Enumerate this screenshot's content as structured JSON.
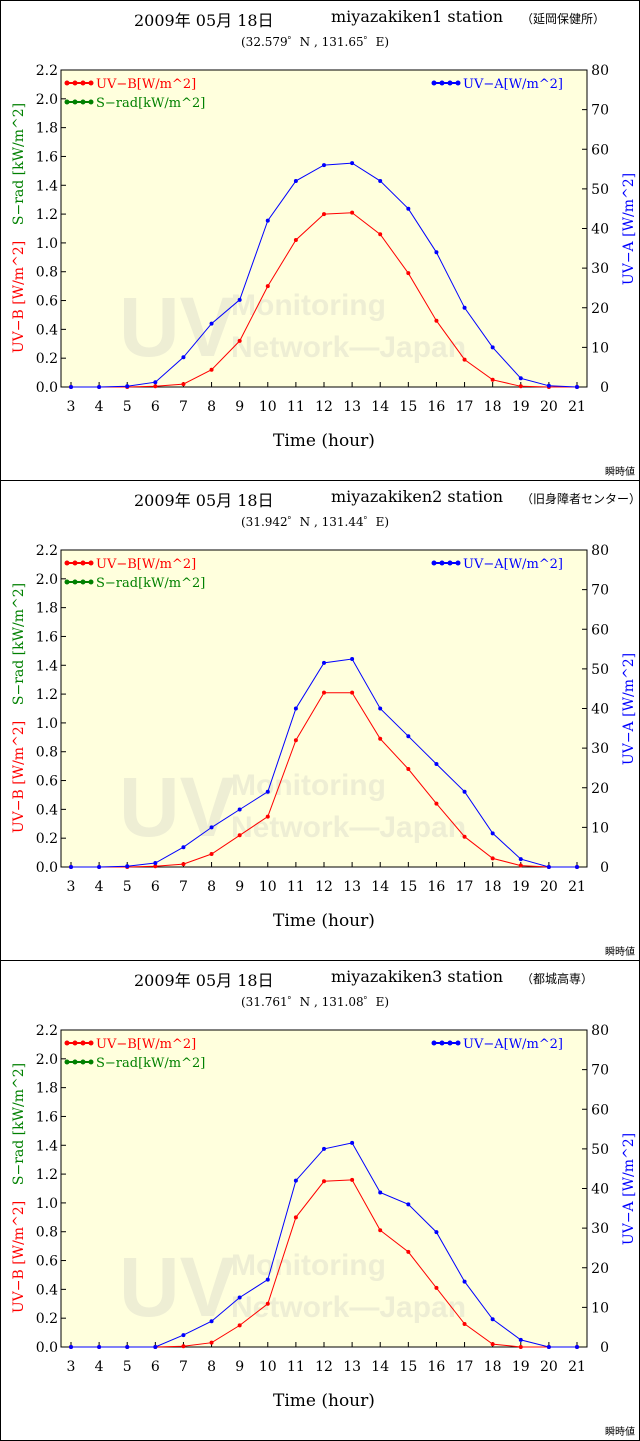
{
  "chart_data": [
    {
      "type": "line",
      "title_date": "2009年 05月 18日",
      "station": "miyazakiken1 station",
      "station_jp": "（延岡保健所）",
      "coords": "(32.579゜N , 131.65゜E)",
      "xlabel": "Time (hour)",
      "ylabel_left_uvb": "UV−B [W/m^2]",
      "ylabel_left_srad": "S−rad [kW/m^2]",
      "ylabel_right": "UV−A [W/m^2]",
      "footnote": "瞬時値",
      "x": [
        3,
        4,
        5,
        6,
        7,
        8,
        9,
        10,
        11,
        12,
        13,
        14,
        15,
        16,
        17,
        18,
        19,
        20,
        21
      ],
      "xlim": [
        3,
        21
      ],
      "ylim_left": [
        0,
        2.2
      ],
      "ylim_right": [
        0,
        80
      ],
      "left_ticks": [
        "0.0",
        "0.2",
        "0.4",
        "0.6",
        "0.8",
        "1.0",
        "1.2",
        "1.4",
        "1.6",
        "1.8",
        "2.0",
        "2.2"
      ],
      "right_ticks": [
        "0",
        "10",
        "20",
        "30",
        "40",
        "50",
        "60",
        "70",
        "80"
      ],
      "legend": [
        {
          "name": "UV−B[W/m^2]",
          "color": "#ff0000",
          "position": "top-left"
        },
        {
          "name": "S−rad[kW/m^2]",
          "color": "#008000",
          "position": "top-left"
        },
        {
          "name": "UV−A[W/m^2]",
          "color": "#0000ff",
          "position": "top-right"
        }
      ],
      "series": [
        {
          "name": "UV−B[W/m^2]",
          "axis": "left",
          "color": "#ff0000",
          "values": [
            0,
            0,
            0,
            0.005,
            0.02,
            0.12,
            0.32,
            0.7,
            1.02,
            1.2,
            1.21,
            1.06,
            0.79,
            0.46,
            0.19,
            0.05,
            0.005,
            0,
            0
          ]
        },
        {
          "name": "UV−A[W/m^2]",
          "axis": "right",
          "color": "#0000ff",
          "values": [
            0,
            0,
            0.2,
            1.2,
            7.5,
            16,
            22,
            42,
            52,
            56,
            56.5,
            52,
            45,
            34,
            20,
            10,
            2.2,
            0.3,
            0
          ]
        }
      ]
    },
    {
      "type": "line",
      "title_date": "2009年 05月 18日",
      "station": "miyazakiken2 station",
      "station_jp": "（旧身障者センター）",
      "coords": "(31.942゜N , 131.44゜E)",
      "xlabel": "Time (hour)",
      "ylabel_left_uvb": "UV−B [W/m^2]",
      "ylabel_left_srad": "S−rad [kW/m^2]",
      "ylabel_right": "UV−A [W/m^2]",
      "footnote": "瞬時値",
      "x": [
        3,
        4,
        5,
        6,
        7,
        8,
        9,
        10,
        11,
        12,
        13,
        14,
        15,
        16,
        17,
        18,
        19,
        20,
        21
      ],
      "xlim": [
        3,
        21
      ],
      "ylim_left": [
        0,
        2.2
      ],
      "ylim_right": [
        0,
        80
      ],
      "left_ticks": [
        "0.0",
        "0.2",
        "0.4",
        "0.6",
        "0.8",
        "1.0",
        "1.2",
        "1.4",
        "1.6",
        "1.8",
        "2.0",
        "2.2"
      ],
      "right_ticks": [
        "0",
        "10",
        "20",
        "30",
        "40",
        "50",
        "60",
        "70",
        "80"
      ],
      "legend": [
        {
          "name": "UV−B[W/m^2]",
          "color": "#ff0000",
          "position": "top-left"
        },
        {
          "name": "S−rad[kW/m^2]",
          "color": "#008000",
          "position": "top-left"
        },
        {
          "name": "UV−A[W/m^2]",
          "color": "#0000ff",
          "position": "top-right"
        }
      ],
      "series": [
        {
          "name": "UV−B[W/m^2]",
          "axis": "left",
          "color": "#ff0000",
          "values": [
            0,
            0,
            0,
            0.005,
            0.02,
            0.09,
            0.22,
            0.35,
            0.88,
            1.21,
            1.21,
            0.89,
            0.68,
            0.44,
            0.21,
            0.06,
            0.01,
            0,
            0
          ]
        },
        {
          "name": "UV−A[W/m^2]",
          "axis": "right",
          "color": "#0000ff",
          "values": [
            0,
            0,
            0.2,
            1,
            5,
            10,
            14.5,
            19,
            40,
            51.5,
            52.5,
            40,
            33,
            26,
            19,
            8.5,
            2,
            0,
            0
          ]
        }
      ]
    },
    {
      "type": "line",
      "title_date": "2009年 05月 18日",
      "station": "miyazakiken3 station",
      "station_jp": "（都城高専）",
      "coords": "(31.761゜N , 131.08゜E)",
      "xlabel": "Time (hour)",
      "ylabel_left_uvb": "UV−B [W/m^2]",
      "ylabel_left_srad": "S−rad [kW/m^2]",
      "ylabel_right": "UV−A [W/m^2]",
      "footnote": "瞬時値",
      "x": [
        3,
        4,
        5,
        6,
        7,
        8,
        9,
        10,
        11,
        12,
        13,
        14,
        15,
        16,
        17,
        18,
        19,
        20,
        21
      ],
      "xlim": [
        3,
        21
      ],
      "ylim_left": [
        0,
        2.2
      ],
      "ylim_right": [
        0,
        80
      ],
      "left_ticks": [
        "0.0",
        "0.2",
        "0.4",
        "0.6",
        "0.8",
        "1.0",
        "1.2",
        "1.4",
        "1.6",
        "1.8",
        "2.0",
        "2.2"
      ],
      "right_ticks": [
        "0",
        "10",
        "20",
        "30",
        "40",
        "50",
        "60",
        "70",
        "80"
      ],
      "legend": [
        {
          "name": "UV−B[W/m^2]",
          "color": "#ff0000",
          "position": "top-left"
        },
        {
          "name": "S−rad[kW/m^2]",
          "color": "#008000",
          "position": "top-left"
        },
        {
          "name": "UV−A[W/m^2]",
          "color": "#0000ff",
          "position": "top-right"
        }
      ],
      "series": [
        {
          "name": "UV−B[W/m^2]",
          "axis": "left",
          "color": "#ff0000",
          "values": [
            0,
            0,
            0,
            0,
            0.005,
            0.03,
            0.15,
            0.3,
            0.9,
            1.15,
            1.16,
            0.81,
            0.66,
            0.41,
            0.16,
            0.02,
            0,
            0,
            0
          ]
        },
        {
          "name": "UV−A[W/m^2]",
          "axis": "right",
          "color": "#0000ff",
          "values": [
            0,
            0,
            0,
            0,
            3,
            6.5,
            12.5,
            17,
            42,
            50,
            51.5,
            39,
            36,
            29,
            16.5,
            7,
            1.8,
            0,
            0
          ]
        }
      ]
    }
  ]
}
